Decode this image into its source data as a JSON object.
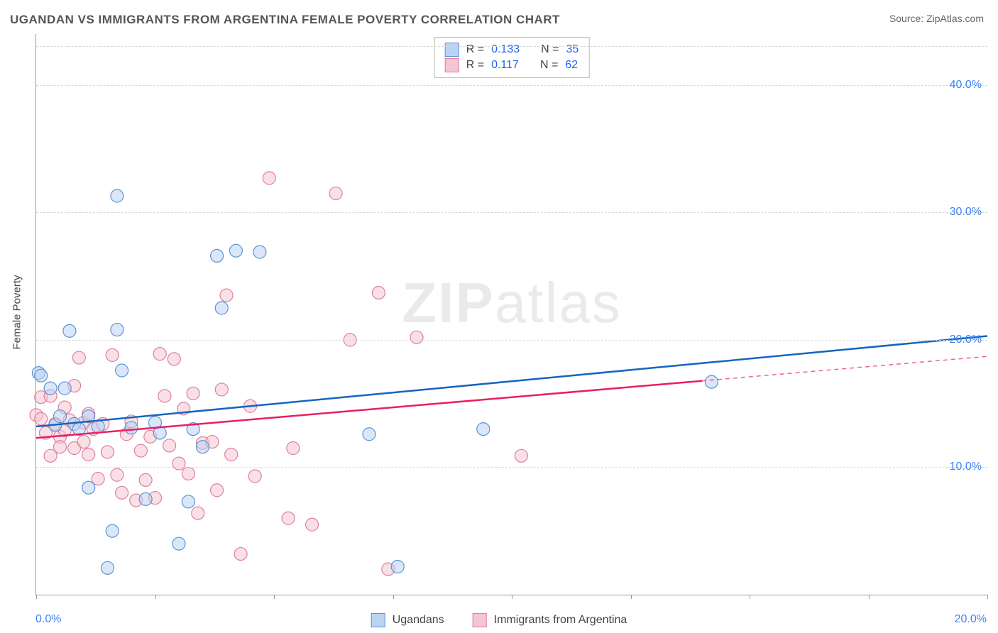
{
  "title": "UGANDAN VS IMMIGRANTS FROM ARGENTINA FEMALE POVERTY CORRELATION CHART",
  "source": "Source: ZipAtlas.com",
  "watermark": {
    "part1": "ZIP",
    "part2": "atlas"
  },
  "y_axis_label": "Female Poverty",
  "chart": {
    "type": "scatter-with-trend",
    "background_color": "#ffffff",
    "grid_color": "#d8d8d8",
    "axis_color": "#999999",
    "xlim": [
      0,
      20
    ],
    "ylim": [
      0,
      44
    ],
    "x_ticks": [
      0,
      2.5,
      5,
      7.5,
      10,
      12.5,
      15,
      17.5,
      20
    ],
    "x_tick_labels": {
      "0": "0.0%",
      "20": "20.0%"
    },
    "y_ticks": [
      10,
      20,
      30,
      40
    ],
    "y_tick_labels": [
      "10.0%",
      "20.0%",
      "30.0%",
      "40.0%"
    ],
    "tick_label_color": "#3b82f6",
    "tick_label_fontsize": 16,
    "marker_radius": 9,
    "marker_opacity": 0.55,
    "series": [
      {
        "name": "Ugandans",
        "color_fill": "#b9d4f2",
        "color_stroke": "#5c94d6",
        "trend_color": "#1565c0",
        "r": "0.133",
        "n": "35",
        "points": [
          [
            0.05,
            17.4
          ],
          [
            0.1,
            17.2
          ],
          [
            0.3,
            16.2
          ],
          [
            0.4,
            13.3
          ],
          [
            0.5,
            14.0
          ],
          [
            0.6,
            16.2
          ],
          [
            0.7,
            20.7
          ],
          [
            0.8,
            13.4
          ],
          [
            0.9,
            13.0
          ],
          [
            1.1,
            8.4
          ],
          [
            1.1,
            14.0
          ],
          [
            1.3,
            13.2
          ],
          [
            1.5,
            2.1
          ],
          [
            1.6,
            5.0
          ],
          [
            1.7,
            20.8
          ],
          [
            1.7,
            31.3
          ],
          [
            1.8,
            17.6
          ],
          [
            2.0,
            13.1
          ],
          [
            2.3,
            7.5
          ],
          [
            2.5,
            13.5
          ],
          [
            2.6,
            12.7
          ],
          [
            3.0,
            4.0
          ],
          [
            3.2,
            7.3
          ],
          [
            3.3,
            13.0
          ],
          [
            3.5,
            11.6
          ],
          [
            3.8,
            26.6
          ],
          [
            3.9,
            22.5
          ],
          [
            4.2,
            27.0
          ],
          [
            4.7,
            26.9
          ],
          [
            7.0,
            12.6
          ],
          [
            7.6,
            2.2
          ],
          [
            9.4,
            13.0
          ],
          [
            14.2,
            16.7
          ]
        ],
        "trend": {
          "y_at_x0": 13.2,
          "y_at_x20": 20.3,
          "solid_until_x": 20
        }
      },
      {
        "name": "Immigrants from Argentina",
        "color_fill": "#f4c6d2",
        "color_stroke": "#e07f9e",
        "trend_color": "#e91e63",
        "r": "0.117",
        "n": "62",
        "points": [
          [
            0.0,
            14.1
          ],
          [
            0.1,
            15.5
          ],
          [
            0.1,
            13.8
          ],
          [
            0.2,
            12.7
          ],
          [
            0.3,
            15.6
          ],
          [
            0.3,
            10.9
          ],
          [
            0.4,
            13.4
          ],
          [
            0.5,
            12.4
          ],
          [
            0.5,
            11.6
          ],
          [
            0.6,
            12.9
          ],
          [
            0.6,
            14.7
          ],
          [
            0.7,
            13.7
          ],
          [
            0.8,
            11.5
          ],
          [
            0.8,
            16.4
          ],
          [
            0.9,
            18.6
          ],
          [
            1.0,
            13.5
          ],
          [
            1.0,
            12.0
          ],
          [
            1.1,
            11.0
          ],
          [
            1.1,
            14.2
          ],
          [
            1.2,
            13.0
          ],
          [
            1.3,
            9.1
          ],
          [
            1.4,
            13.4
          ],
          [
            1.5,
            11.2
          ],
          [
            1.6,
            18.8
          ],
          [
            1.7,
            9.4
          ],
          [
            1.8,
            8.0
          ],
          [
            1.9,
            12.6
          ],
          [
            2.0,
            13.6
          ],
          [
            2.1,
            7.4
          ],
          [
            2.2,
            11.3
          ],
          [
            2.3,
            9.0
          ],
          [
            2.4,
            12.4
          ],
          [
            2.5,
            7.6
          ],
          [
            2.6,
            18.9
          ],
          [
            2.7,
            15.6
          ],
          [
            2.8,
            11.7
          ],
          [
            2.9,
            18.5
          ],
          [
            3.0,
            10.3
          ],
          [
            3.1,
            14.6
          ],
          [
            3.2,
            9.5
          ],
          [
            3.3,
            15.8
          ],
          [
            3.4,
            6.4
          ],
          [
            3.5,
            11.9
          ],
          [
            3.7,
            12.0
          ],
          [
            3.8,
            8.2
          ],
          [
            3.9,
            16.1
          ],
          [
            4.0,
            23.5
          ],
          [
            4.1,
            11.0
          ],
          [
            4.3,
            3.2
          ],
          [
            4.5,
            14.8
          ],
          [
            4.6,
            9.3
          ],
          [
            4.9,
            32.7
          ],
          [
            5.3,
            6.0
          ],
          [
            5.4,
            11.5
          ],
          [
            5.8,
            5.5
          ],
          [
            6.3,
            31.5
          ],
          [
            6.6,
            20.0
          ],
          [
            7.2,
            23.7
          ],
          [
            7.4,
            2.0
          ],
          [
            8.0,
            20.2
          ],
          [
            10.2,
            10.9
          ]
        ],
        "trend": {
          "y_at_x0": 12.3,
          "y_at_x20": 18.7,
          "solid_until_x": 14.0
        }
      }
    ]
  },
  "stats_legend": {
    "r_label": "R =",
    "n_label": "N ="
  },
  "bottom_legend": {
    "items": [
      "Ugandans",
      "Immigrants from Argentina"
    ]
  }
}
